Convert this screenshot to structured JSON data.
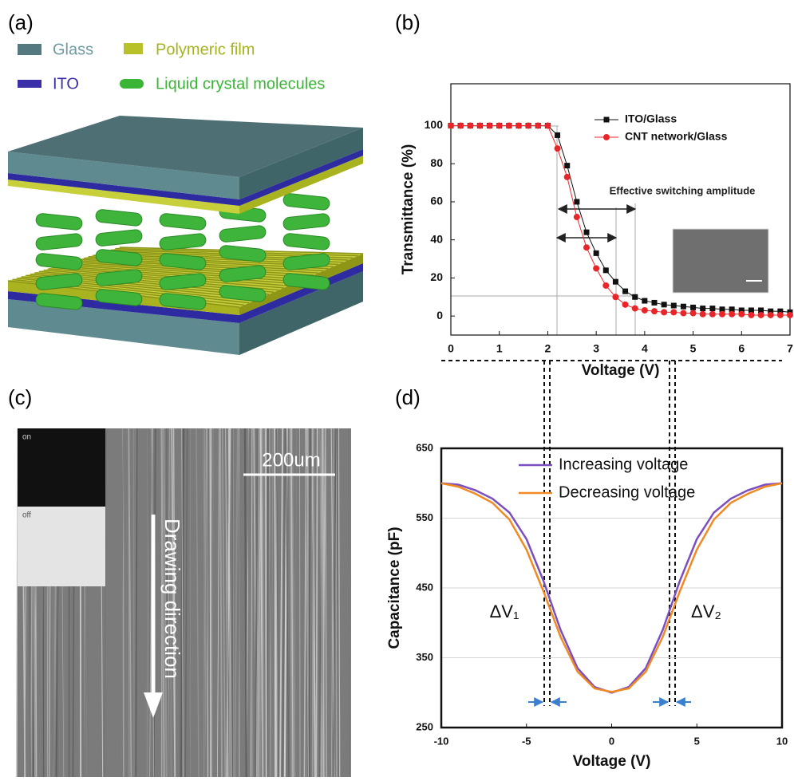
{
  "panel_labels": [
    "(a)",
    "(b)",
    "(c)",
    "(d)"
  ],
  "diagram": {
    "legend": [
      "Glass",
      "Polymeric film",
      "ITO",
      "Liquid crystal molecules"
    ]
  },
  "micrograph": {
    "inset": [
      "on",
      "off"
    ],
    "scale_bar": "200um",
    "arrow_label": "Drawing direction"
  },
  "chart_data": [
    {
      "type": "line",
      "xlabel": "Voltage (V)",
      "ylabel": "Transmittance (%)",
      "annotation": "Effective switching amplitude",
      "x": [
        0,
        0.2,
        0.4,
        0.6,
        0.8,
        1,
        1.2,
        1.4,
        1.6,
        1.8,
        2,
        2.2,
        2.4,
        2.6,
        2.8,
        3,
        3.2,
        3.4,
        3.6,
        3.8,
        4,
        4.2,
        4.4,
        4.6,
        4.8,
        5,
        5.2,
        5.4,
        5.6,
        5.8,
        6,
        6.2,
        6.4,
        6.6,
        6.8,
        7
      ],
      "series": [
        {
          "name": "ITO/Glass",
          "color": "#111111",
          "marker": "square",
          "values": [
            100,
            100,
            100,
            100,
            100,
            100,
            100,
            100,
            100,
            100,
            100,
            95,
            79,
            60,
            44,
            33,
            24,
            18,
            13,
            10,
            8,
            7,
            6,
            5.5,
            5,
            4.5,
            4,
            4,
            3.5,
            3.5,
            3,
            3,
            3,
            2.5,
            2.5,
            2
          ]
        },
        {
          "name": "CNT network/Glass",
          "color": "#e8262a",
          "marker": "circle",
          "values": [
            100,
            100,
            100,
            100,
            100,
            100,
            100,
            100,
            100,
            100,
            100,
            88,
            73,
            52,
            36,
            25,
            16,
            10,
            6,
            4,
            3,
            2.5,
            2,
            2,
            1.5,
            1.5,
            1,
            1,
            1,
            1,
            1,
            0.5,
            0.5,
            0.5,
            0.5,
            0.5
          ]
        }
      ],
      "xlim": [
        0,
        7
      ],
      "xticks": [
        0,
        1,
        2,
        3,
        4,
        5,
        6,
        7
      ],
      "ylim": [
        -10,
        122
      ],
      "yticks": [
        0,
        20,
        40,
        60,
        80,
        100
      ],
      "grid": false,
      "legend": "upper right"
    },
    {
      "type": "line",
      "xlabel": "Voltage (V)",
      "ylabel": "Capacitance (pF)",
      "annotations": [
        "ΔV₁",
        "ΔV₂"
      ],
      "x": [
        -10,
        -9,
        -8,
        -7,
        -6,
        -5,
        -4,
        -3,
        -2,
        -1,
        0,
        1,
        2,
        3,
        4,
        5,
        6,
        7,
        8,
        9,
        10
      ],
      "series": [
        {
          "name": "Increasing voltage",
          "color": "#7b4fc0",
          "values": [
            600,
            598,
            590,
            578,
            558,
            520,
            460,
            390,
            335,
            308,
            300,
            308,
            335,
            390,
            460,
            520,
            558,
            578,
            590,
            598,
            600
          ]
        },
        {
          "name": "Decreasing voltage",
          "color": "#f08a24",
          "values": [
            600,
            595,
            585,
            572,
            548,
            505,
            445,
            380,
            330,
            306,
            301,
            306,
            330,
            380,
            445,
            505,
            548,
            572,
            585,
            595,
            600
          ]
        }
      ],
      "xlim": [
        -10,
        10
      ],
      "xticks": [
        -10,
        -5,
        0,
        5,
        10
      ],
      "ylim": [
        250,
        650
      ],
      "yticks": [
        250,
        350,
        450,
        550,
        650
      ],
      "grid": true,
      "legend": "upper center"
    }
  ]
}
